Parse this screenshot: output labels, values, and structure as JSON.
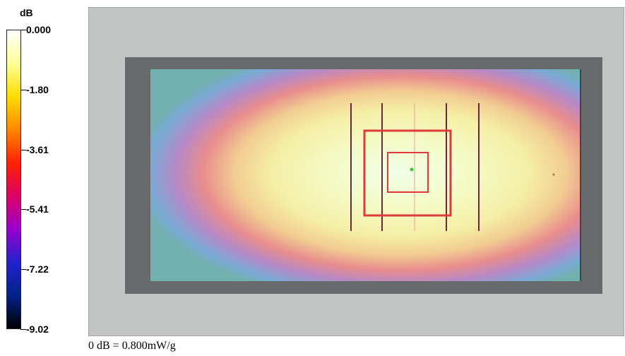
{
  "chart_data": {
    "type": "heatmap",
    "colorbar": {
      "unit": "dB",
      "ticks": [
        "0.000",
        "-1.80",
        "-3.61",
        "-5.41",
        "-7.22",
        "-9.02"
      ],
      "range": [
        -9.02,
        0.0
      ],
      "colors": [
        "#ffffff",
        "#ffff99",
        "#ffdd00",
        "#ff8800",
        "#ff2200",
        "#dd0066",
        "#9900cc",
        "#2222cc",
        "#002288",
        "#000000"
      ]
    },
    "footnote": "0 dB = 0.800mW/g",
    "colors": {
      "outer_panel": "#c0c4c3",
      "phantom_dark": "#666a6a",
      "grid_box": "#e03a3a",
      "grid_lines": "#6a2840",
      "peak_marker": "#33cc33"
    }
  }
}
